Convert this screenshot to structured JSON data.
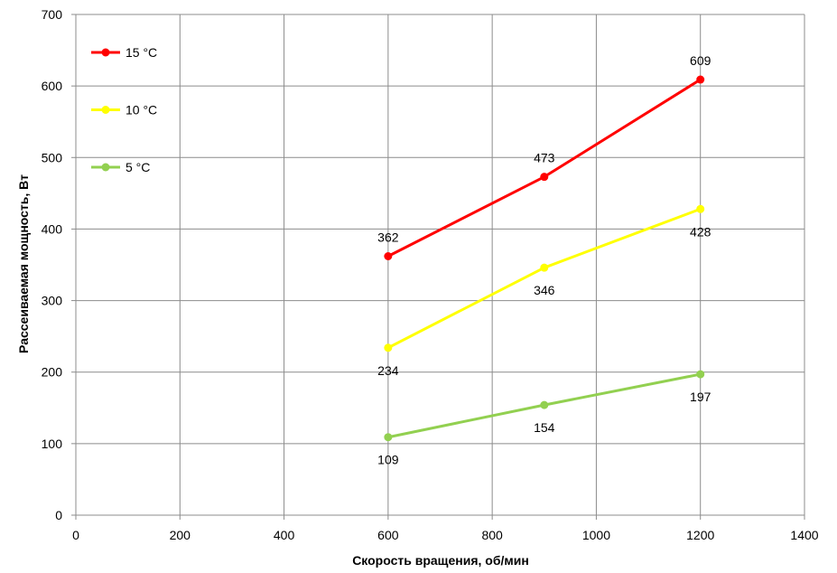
{
  "chart_data": {
    "type": "line",
    "title": "",
    "xlabel": "Скорость вращения, об/мин",
    "ylabel": "Рассеиваемая мощность, Вт",
    "xlim": [
      0,
      1400
    ],
    "ylim": [
      0,
      700
    ],
    "xticks": [
      0,
      200,
      400,
      600,
      800,
      1000,
      1200,
      1400
    ],
    "yticks": [
      0,
      100,
      200,
      300,
      400,
      500,
      600,
      700
    ],
    "grid": true,
    "legend_position": "top-left",
    "series": [
      {
        "name": "15 °C",
        "color": "#ff0000",
        "x": [
          600,
          900,
          1200
        ],
        "y": [
          362,
          473,
          609
        ],
        "labels": [
          "362",
          "473",
          "609"
        ],
        "label_pos": "above"
      },
      {
        "name": "10 °C",
        "color": "#ffff00",
        "x": [
          600,
          900,
          1200
        ],
        "y": [
          234,
          346,
          428
        ],
        "labels": [
          "234",
          "346",
          "428"
        ],
        "label_pos": "below"
      },
      {
        "name": "5 °C",
        "color": "#92d050",
        "x": [
          600,
          900,
          1200
        ],
        "y": [
          109,
          154,
          197
        ],
        "labels": [
          "109",
          "154",
          "197"
        ],
        "label_pos": "below"
      }
    ]
  }
}
